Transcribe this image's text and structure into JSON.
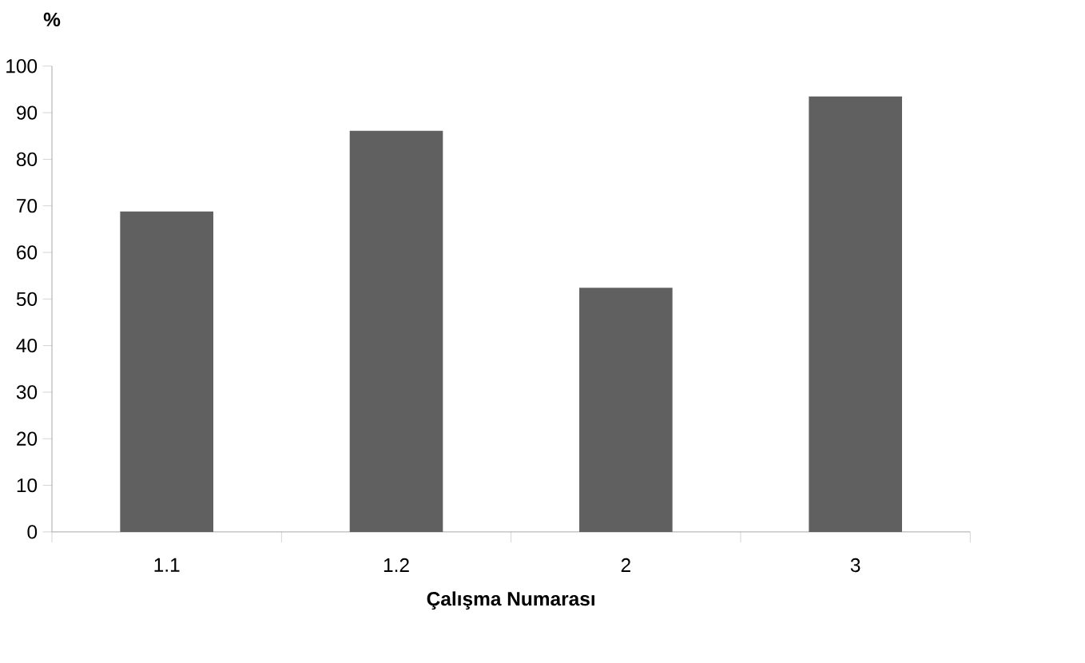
{
  "chart_data": {
    "type": "bar",
    "ylabel": "%",
    "xlabel": "Çalışma Numarası",
    "categories": [
      "1.1",
      "1.2",
      "2",
      "3"
    ],
    "values": [
      68.8,
      86.1,
      52.4,
      93.5
    ],
    "color": "#606060",
    "ylim": [
      0,
      100
    ],
    "yticks": [
      0,
      10,
      20,
      30,
      40,
      50,
      60,
      70,
      80,
      90,
      100
    ],
    "grid": false
  }
}
